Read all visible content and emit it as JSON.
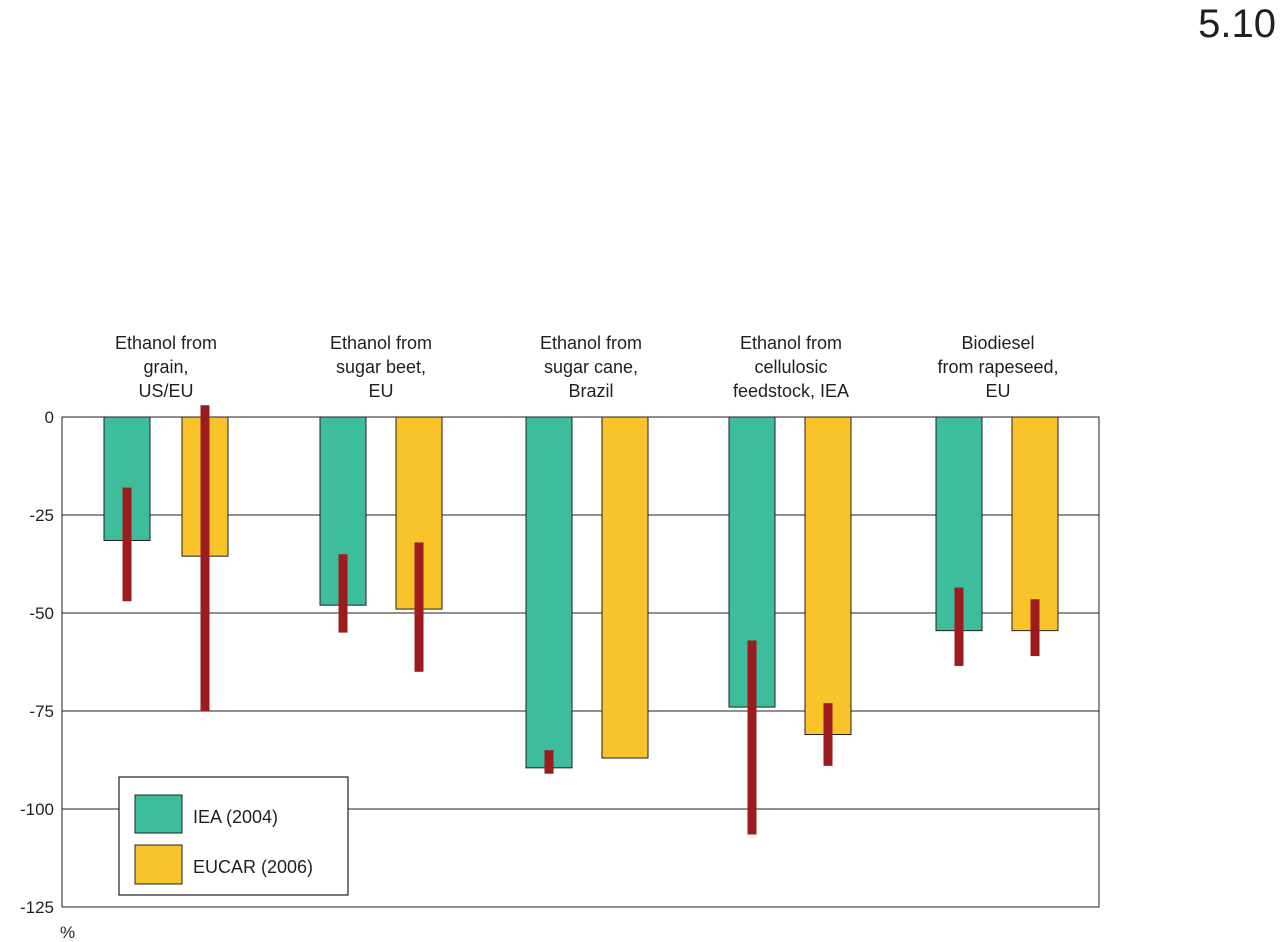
{
  "figure_number": "5.10",
  "chart_data": {
    "type": "bar",
    "ylabel": "%",
    "ylim": [
      -125,
      0
    ],
    "yticks": [
      0,
      -25,
      -50,
      -75,
      -100,
      -125
    ],
    "grid": true,
    "legend_position": "bottom-left",
    "categories": [
      [
        "Ethanol from",
        "grain,",
        "US/EU"
      ],
      [
        "Ethanol from",
        "sugar beet,",
        "EU"
      ],
      [
        "Ethanol from",
        "sugar cane,",
        "Brazil"
      ],
      [
        "Ethanol from",
        "cellulosic",
        "feedstock, IEA"
      ],
      [
        "Biodiesel",
        "from rapeseed,",
        "EU"
      ]
    ],
    "series": [
      {
        "name": "IEA (2004)",
        "color": "#3dbd9b",
        "values": [
          -31.5,
          -48,
          -89.5,
          -74,
          -54.5
        ],
        "range_low": [
          -47,
          -55,
          -91,
          -106.5,
          -63.5
        ],
        "range_high": [
          -18,
          -35,
          -85,
          -57,
          -43.5
        ]
      },
      {
        "name": "EUCAR (2006)",
        "color": "#f8c42a",
        "values": [
          -35.5,
          -49,
          -87,
          -81,
          -54.5
        ],
        "range_low": [
          -75,
          -65,
          null,
          -89,
          -61
        ],
        "range_high": [
          3,
          -32,
          null,
          -73,
          -46.5
        ]
      }
    ],
    "range_color": "#9b1b1f"
  }
}
